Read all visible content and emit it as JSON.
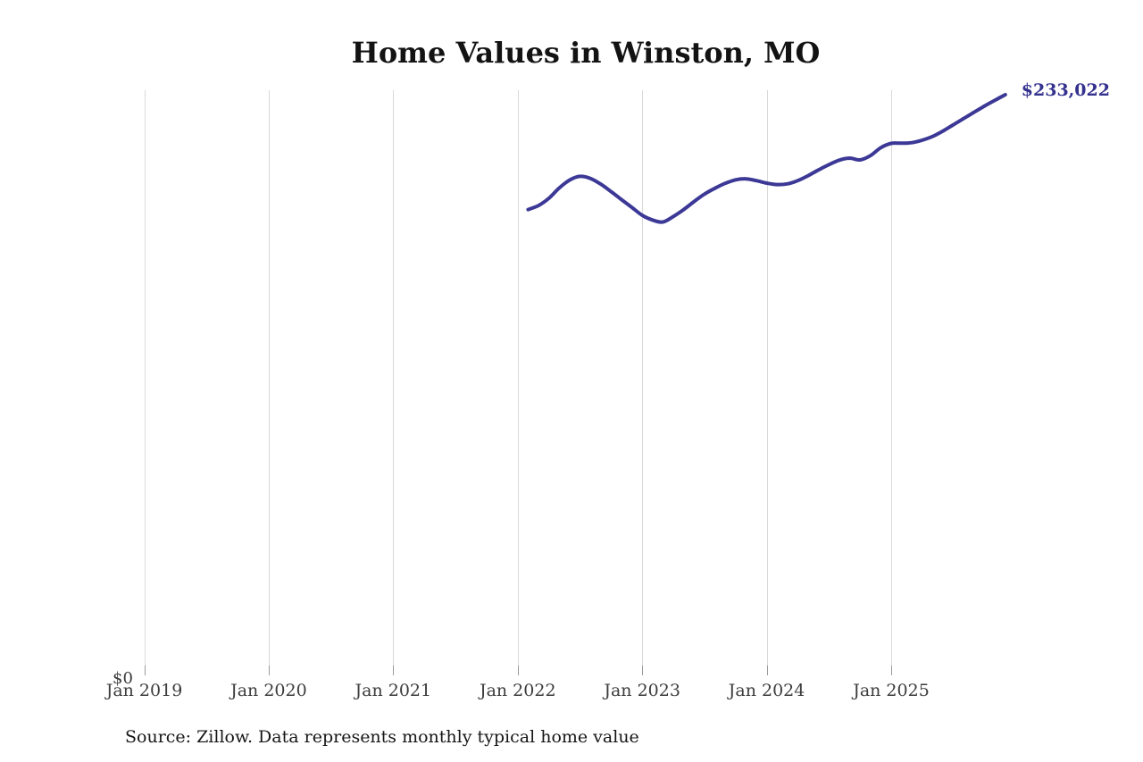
{
  "chart": {
    "title": "Home Values in Winston, MO",
    "y_zero_label": "$0",
    "end_value_label": "$233,022",
    "source": "Source: Zillow. Data represents monthly typical home value"
  },
  "colors": {
    "line": "#3c3896",
    "end_label": "#34318f",
    "gridline": "#d9d9d9",
    "axis_text": "#3c3c3c",
    "source_text": "#161616",
    "background": "#ffffff"
  },
  "chart_data": {
    "type": "line",
    "title": "Home Values in Winston, MO",
    "xlabel": "",
    "ylabel": "",
    "grid": "vertical-only",
    "legend": "none",
    "ylim": [
      0,
      240000
    ],
    "y_zero_label": "$0",
    "x_tick_labels": [
      "Jan 2019",
      "Jan 2020",
      "Jan 2021",
      "Jan 2022",
      "Jan 2023",
      "Jan 2024",
      "Jan 2025"
    ],
    "end_value": 233022,
    "end_value_label": "$233,022",
    "series": [
      {
        "name": "Monthly typical home value",
        "months": [
          "Feb 2022",
          "Mar 2022",
          "Apr 2022",
          "May 2022",
          "Jun 2022",
          "Jul 2022",
          "Aug 2022",
          "Sep 2022",
          "Oct 2022",
          "Nov 2022",
          "Dec 2022",
          "Jan 2023",
          "Feb 2023",
          "Mar 2023",
          "Apr 2023",
          "May 2023",
          "Jun 2023",
          "Jul 2023",
          "Aug 2023",
          "Sep 2023",
          "Oct 2023",
          "Nov 2023",
          "Dec 2023",
          "Jan 2024",
          "Feb 2024",
          "Mar 2024",
          "Apr 2024",
          "May 2024",
          "Jun 2024",
          "Jul 2024",
          "Aug 2024",
          "Sep 2024",
          "Oct 2024",
          "Nov 2024",
          "Dec 2024",
          "Jan 2025",
          "Feb 2025",
          "Mar 2025",
          "Apr 2025",
          "May 2025",
          "Jun 2025",
          "Jul 2025",
          "Aug 2025",
          "Sep 2025",
          "Oct 2025",
          "Nov 2025",
          "Dec 2025"
        ],
        "values": [
          187000,
          188600,
          191500,
          195600,
          198800,
          200300,
          199500,
          197200,
          194200,
          191000,
          187900,
          184700,
          182800,
          182000,
          184200,
          187000,
          190200,
          193200,
          195500,
          197500,
          198900,
          199300,
          198600,
          197600,
          197000,
          197300,
          198600,
          200600,
          202900,
          205000,
          206800,
          207600,
          206900,
          208600,
          211800,
          213500,
          213600,
          213800,
          214800,
          216300,
          218500,
          221000,
          223500,
          226000,
          228500,
          230800,
          233022
        ]
      }
    ]
  }
}
